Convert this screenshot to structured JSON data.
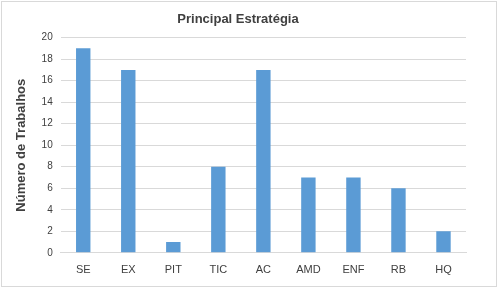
{
  "chart_data": {
    "type": "bar",
    "title": "Principal Estratégia",
    "y_label": "Número de Trabalhos",
    "categories": [
      "SE",
      "EX",
      "PIT",
      "TIC",
      "AC",
      "AMD",
      "ENF",
      "RB",
      "HQ"
    ],
    "values": [
      19,
      17,
      1,
      8,
      17,
      7,
      7,
      6,
      2
    ],
    "color": "#5b9bd5",
    "ylim": [
      0,
      20
    ],
    "yticks": [
      0,
      2,
      4,
      6,
      8,
      10,
      12,
      14,
      16,
      18,
      20
    ],
    "grid": true
  }
}
